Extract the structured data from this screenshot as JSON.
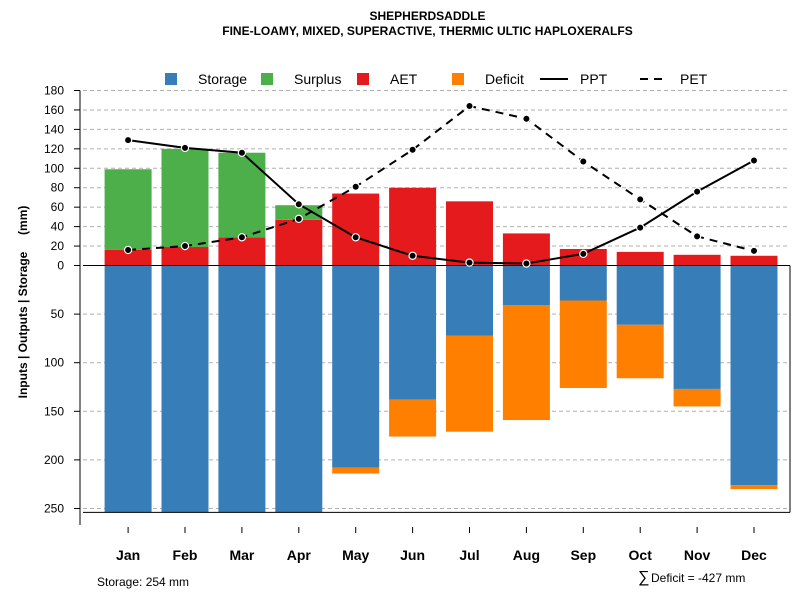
{
  "chart_data": {
    "type": "bar",
    "title": "SHEPHERDSADDLE",
    "subtitle": "FINE-LOAMY, MIXED, SUPERACTIVE, THERMIC ULTIC HAPLOXERALFS",
    "ylabel": "Inputs | Outputs | Storage     (mm)",
    "xlabel": "",
    "categories": [
      "Jan",
      "Feb",
      "Mar",
      "Apr",
      "May",
      "Jun",
      "Jul",
      "Aug",
      "Sep",
      "Oct",
      "Nov",
      "Dec"
    ],
    "upper_ylim": [
      0,
      180
    ],
    "upper_ticks": [
      "0",
      "20",
      "40",
      "60",
      "80",
      "100",
      "120",
      "140",
      "160",
      "180"
    ],
    "lower_ylim": [
      0,
      254
    ],
    "lower_ticks": [
      "50",
      "100",
      "150",
      "200",
      "250"
    ],
    "grid": true,
    "legend_position": "top",
    "legend": [
      {
        "label": "Storage",
        "kind": "box",
        "color": "#377EB8"
      },
      {
        "label": "Surplus",
        "kind": "box",
        "color": "#4DAF4A"
      },
      {
        "label": "AET",
        "kind": "box",
        "color": "#E41A1C"
      },
      {
        "label": "Deficit",
        "kind": "box",
        "color": "#FF7F00"
      },
      {
        "label": "PPT",
        "kind": "solid"
      },
      {
        "label": "PET",
        "kind": "dashed"
      }
    ],
    "series": [
      {
        "name": "AET",
        "values": [
          16,
          19,
          29,
          47,
          74,
          80,
          66,
          33,
          17,
          14,
          11,
          10
        ]
      },
      {
        "name": "Surplus",
        "values": [
          83,
          101,
          87,
          15,
          0,
          0,
          0,
          0,
          0,
          0,
          0,
          0
        ]
      },
      {
        "name": "Storage",
        "values": [
          254,
          254,
          254,
          254,
          208,
          138,
          72,
          41,
          36,
          61,
          127,
          226
        ]
      },
      {
        "name": "Deficit",
        "values": [
          0,
          0,
          0,
          0,
          6,
          38,
          99,
          118,
          90,
          55,
          18,
          4
        ]
      },
      {
        "name": "PPT",
        "values": [
          129,
          121,
          116,
          63,
          29,
          10,
          3,
          2,
          12,
          39,
          76,
          108
        ]
      },
      {
        "name": "PET",
        "values": [
          16,
          20,
          29,
          48,
          81,
          119,
          164,
          151,
          107,
          68,
          30,
          15
        ]
      }
    ],
    "colors": {
      "storage": "#377EB8",
      "surplus": "#4DAF4A",
      "aet": "#E41A1C",
      "deficit": "#FF7F00"
    }
  },
  "footer": {
    "storage_note": "Storage: 254 mm",
    "deficit_symbol": "∑",
    "deficit_note": "Deficit = -427 mm"
  }
}
